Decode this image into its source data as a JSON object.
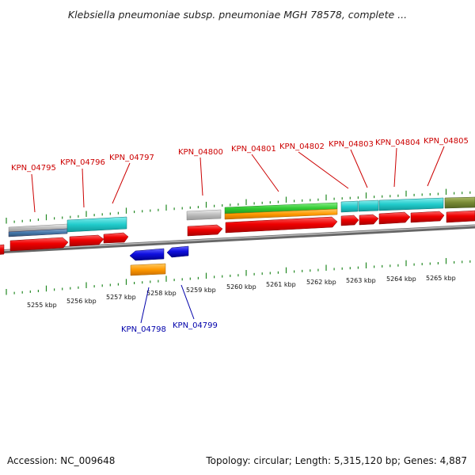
{
  "header": {
    "title": "Klebsiella pneumoniae subsp. pneumoniae MGH 78578, complete ..."
  },
  "footer": {
    "accession": "Accession: NC_009648",
    "summary": "Topology: circular; Length: 5,315,120 bp; Genes: 4,887"
  },
  "scale": {
    "ticks": [
      "5255 kbp",
      "5256 kbp",
      "5257 kbp",
      "5258 kbp",
      "5259 kbp",
      "5260 kbp",
      "5261 kbp",
      "5262 kbp",
      "5263 kbp",
      "5264 kbp",
      "5265 kbp"
    ]
  },
  "genes_top": [
    {
      "name": "KPN_04795"
    },
    {
      "name": "KPN_04796"
    },
    {
      "name": "KPN_04797"
    },
    {
      "name": "KPN_04800"
    },
    {
      "name": "KPN_04801"
    },
    {
      "name": "KPN_04802"
    },
    {
      "name": "KPN_04803"
    },
    {
      "name": "KPN_04804"
    },
    {
      "name": "KPN_04805"
    }
  ],
  "genes_bottom": [
    {
      "name": "KPN_04798"
    },
    {
      "name": "KPN_04799"
    }
  ],
  "colors": {
    "cds": "#ee0000",
    "cds_reverse": "#1010e0",
    "orange": "#ff9900",
    "cyan": "#22cccc",
    "green": "#33cc33",
    "olive": "#778833",
    "gray": "#bbbbbb",
    "steel": "#4477aa",
    "backbone": "#888888",
    "tick": "#228822",
    "label_top": "#cc0000",
    "label_bottom": "#0000aa"
  }
}
